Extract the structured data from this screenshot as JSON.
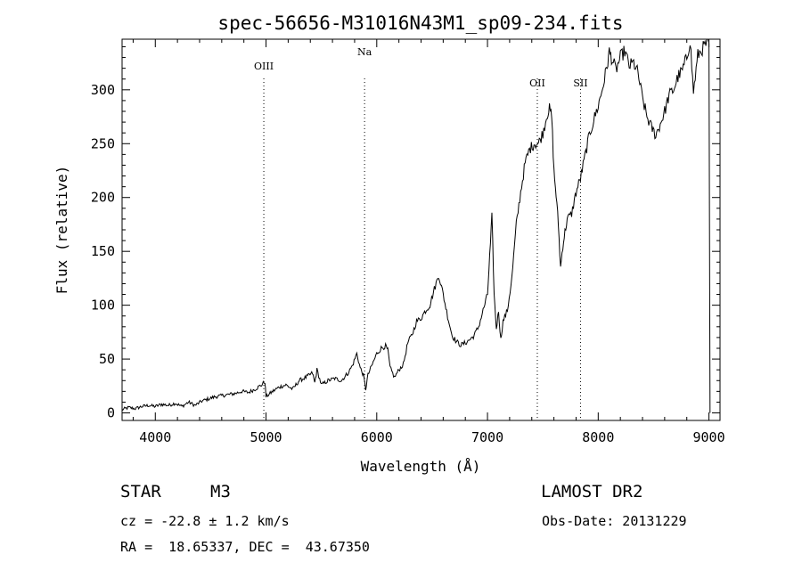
{
  "chart_data": {
    "type": "line",
    "title": "spec-56656-M31016N43M1_sp09-234.fits",
    "xlabel": "Wavelength (Å)",
    "ylabel": "Flux (relative)",
    "xlim": [
      3700,
      9100
    ],
    "ylim": [
      -7,
      347
    ],
    "xticks": [
      4000,
      5000,
      6000,
      7000,
      8000,
      9000
    ],
    "yticks": [
      0,
      50,
      100,
      150,
      200,
      250,
      300
    ],
    "grid": false,
    "legend": "none",
    "series": [
      {
        "x": [
          3700,
          3760,
          3820,
          3880,
          3940,
          4000,
          4060,
          4120,
          4180,
          4240,
          4300,
          4360,
          4420,
          4480,
          4540,
          4600,
          4660,
          4720,
          4780,
          4840,
          4900,
          4960,
          4990,
          5000,
          5060,
          5120,
          5180,
          5240,
          5300,
          5360,
          5420,
          5440,
          5460,
          5500,
          5560,
          5620,
          5680,
          5740,
          5780,
          5820,
          5850,
          5880,
          5900,
          5920,
          5960,
          6000,
          6040,
          6080,
          6100,
          6120,
          6160,
          6200,
          6240,
          6280,
          6320,
          6360,
          6400,
          6440,
          6480,
          6520,
          6560,
          6600,
          6640,
          6680,
          6720,
          6760,
          6800,
          6840,
          6880,
          6920,
          6960,
          7000,
          7020,
          7040,
          7060,
          7080,
          7100,
          7120,
          7140,
          7180,
          7220,
          7260,
          7300,
          7340,
          7380,
          7420,
          7460,
          7500,
          7540,
          7560,
          7580,
          7600,
          7620,
          7640,
          7660,
          7680,
          7700,
          7720,
          7760,
          7800,
          7840,
          7880,
          7920,
          7960,
          8000,
          8040,
          8080,
          8100,
          8120,
          8160,
          8200,
          8240,
          8280,
          8320,
          8360,
          8400,
          8440,
          8480,
          8520,
          8560,
          8600,
          8640,
          8680,
          8720,
          8760,
          8800,
          8830,
          8860,
          8900,
          8940,
          8980,
          9000,
          9010
        ],
        "y": [
          3,
          5,
          4,
          6,
          7,
          6,
          8,
          7,
          9,
          6,
          10,
          7,
          11,
          13,
          15,
          16,
          17,
          18,
          20,
          19,
          22,
          26,
          29,
          15,
          20,
          24,
          26,
          22,
          30,
          33,
          37,
          28,
          40,
          26,
          30,
          32,
          30,
          37,
          44,
          55,
          42,
          35,
          22,
          35,
          45,
          55,
          60,
          62,
          58,
          42,
          33,
          40,
          45,
          65,
          73,
          85,
          88,
          95,
          100,
          115,
          128,
          110,
          90,
          72,
          66,
          63,
          65,
          68,
          72,
          80,
          95,
          110,
          145,
          182,
          110,
          78,
          95,
          68,
          85,
          95,
          125,
          175,
          205,
          232,
          245,
          250,
          250,
          260,
          278,
          282,
          275,
          225,
          202,
          175,
          135,
          155,
          168,
          180,
          185,
          205,
          218,
          238,
          258,
          272,
          285,
          302,
          322,
          335,
          330,
          318,
          330,
          336,
          322,
          325,
          315,
          292,
          275,
          265,
          258,
          268,
          280,
          295,
          300,
          312,
          318,
          330,
          346,
          298,
          332,
          338,
          343,
          343,
          0
        ]
      }
    ],
    "line_labels": [
      {
        "label": "OIII",
        "x": 4980
      },
      {
        "label": "Na",
        "x": 5890
      },
      {
        "label": "OII",
        "x": 7450
      },
      {
        "label": "SII",
        "x": 7840
      }
    ]
  },
  "info": {
    "class_label": "STAR",
    "subclass": "M3",
    "survey": "LAMOST DR2",
    "cz": "cz = -22.8 ± 1.2 km/s",
    "obs_date": "Obs-Date: 20131229",
    "coords": "RA =  18.65337, DEC =  43.67350"
  }
}
